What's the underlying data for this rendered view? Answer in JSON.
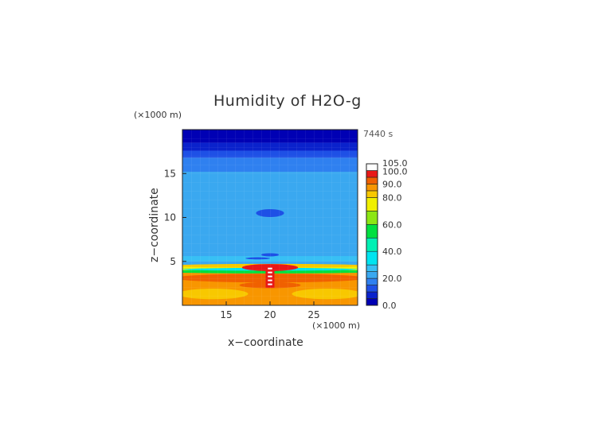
{
  "header": {
    "title": "Humidity of H2O-g",
    "time_label": "7440 s",
    "y_unit": "(×1000 m)",
    "x_unit": "(×1000 m)"
  },
  "chart_data": {
    "type": "heatmap",
    "title": "Humidity of H2O-g",
    "xlabel": "x−coordinate",
    "ylabel": "z−coordinate",
    "x_unit": "(×1000 m)",
    "y_unit": "(×1000 m)",
    "time": "7440 s",
    "xlim": [
      10,
      30
    ],
    "ylim": [
      0,
      20
    ],
    "x_ticks": [
      15,
      20,
      25
    ],
    "y_ticks": [
      5,
      10,
      15
    ],
    "x_tick_labels": [
      "15",
      "20",
      "25"
    ],
    "y_tick_labels": [
      "5",
      "10",
      "15"
    ],
    "colorbar": {
      "range": [
        0,
        105
      ],
      "labels": [
        "105.0",
        "100.0",
        "90.0",
        "80.0",
        "60.0",
        "40.0",
        "20.0",
        "0.0"
      ],
      "label_values": [
        105,
        100,
        90,
        80,
        60,
        40,
        20,
        0
      ],
      "levels": [
        {
          "min": 0,
          "max": 5,
          "color": "#0000b4"
        },
        {
          "min": 5,
          "max": 10,
          "color": "#0a22cc"
        },
        {
          "min": 10,
          "max": 15,
          "color": "#1e50e6"
        },
        {
          "min": 15,
          "max": 20,
          "color": "#2f80f0"
        },
        {
          "min": 20,
          "max": 25,
          "color": "#3aa8f0"
        },
        {
          "min": 25,
          "max": 30,
          "color": "#38c0f4"
        },
        {
          "min": 30,
          "max": 40,
          "color": "#00e4f0"
        },
        {
          "min": 40,
          "max": 50,
          "color": "#00f0b4"
        },
        {
          "min": 50,
          "max": 60,
          "color": "#00e040"
        },
        {
          "min": 60,
          "max": 70,
          "color": "#8ce614"
        },
        {
          "min": 70,
          "max": 80,
          "color": "#f0f000"
        },
        {
          "min": 80,
          "max": 85,
          "color": "#f8c800"
        },
        {
          "min": 85,
          "max": 90,
          "color": "#f89600"
        },
        {
          "min": 90,
          "max": 95,
          "color": "#f06000"
        },
        {
          "min": 95,
          "max": 100,
          "color": "#e81818"
        },
        {
          "min": 100,
          "max": 105,
          "color": "#ffffff"
        }
      ]
    },
    "field": {
      "description_regions": [
        {
          "name": "upper-stratosphere",
          "z": [
            17.5,
            20
          ],
          "value": 3
        },
        {
          "name": "upper-troposphere",
          "z": [
            15,
            17.5
          ],
          "value": 16
        },
        {
          "name": "mid-troposphere",
          "z": [
            4.5,
            15
          ],
          "value": 22
        },
        {
          "name": "dry-patch",
          "x": 20,
          "z": 10.5,
          "value": 12
        },
        {
          "name": "dry-streak",
          "x": 20,
          "z": 5.7,
          "value": 12
        },
        {
          "name": "humid-layer-top",
          "z": [
            3.6,
            4.6
          ],
          "value": 85
        },
        {
          "name": "green-band",
          "z": [
            3.6,
            4.0
          ],
          "value": 55
        },
        {
          "name": "boundary-layer",
          "z": [
            0,
            3.6
          ],
          "value": 88
        },
        {
          "name": "saturated-plume",
          "x": 20,
          "z": [
            2.0,
            4.4
          ],
          "value": 100
        }
      ]
    }
  }
}
